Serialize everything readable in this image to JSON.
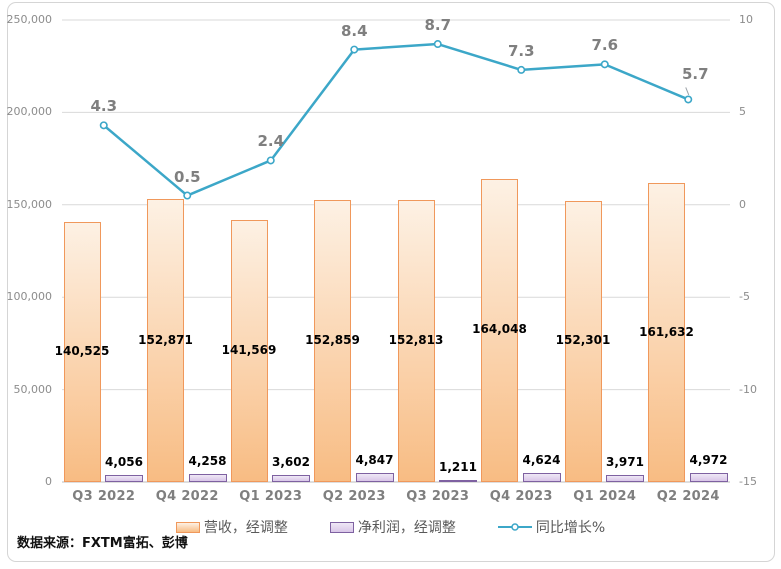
{
  "chart_data": {
    "type": "combo",
    "categories": [
      "Q3 2022",
      "Q4 2022",
      "Q1 2023",
      "Q2 2023",
      "Q3 2023",
      "Q4 2023",
      "Q1 2024",
      "Q2 2024"
    ],
    "series": [
      {
        "name": "营收，经调整",
        "type": "bar",
        "axis": "left",
        "values": [
          140525,
          152871,
          141569,
          152859,
          152813,
          164048,
          152301,
          161632
        ],
        "labels": [
          "140,525",
          "152,871",
          "141,569",
          "152,859",
          "152,813",
          "164,048",
          "152,301",
          "161,632"
        ],
        "fill_top": "#FDF1E4",
        "fill_bottom": "#F8BC83",
        "border": "#F0985B"
      },
      {
        "name": "净利润，经调整",
        "type": "bar",
        "axis": "left",
        "values": [
          4056,
          4258,
          3602,
          4847,
          1211,
          4624,
          3971,
          4972
        ],
        "labels": [
          "4,056",
          "4,258",
          "3,602",
          "4,847",
          "1,211",
          "4,624",
          "3,971",
          "4,972"
        ],
        "fill_top": "#EFE8F6",
        "fill_bottom": "#D9C6E8",
        "border": "#7E61A1"
      },
      {
        "name": "同比增长%",
        "type": "line",
        "axis": "right",
        "values": [
          4.3,
          0.5,
          2.4,
          8.4,
          8.7,
          7.3,
          7.6,
          5.7
        ],
        "labels": [
          "4.3",
          "0.5",
          "2.4",
          "8.4",
          "8.7",
          "7.3",
          "7.6",
          "5.7"
        ],
        "color": "#3CA7C8"
      }
    ],
    "left_axis": {
      "min": 0,
      "max": 250000,
      "tick_labels": [
        "250,000",
        "200,000",
        "150,000",
        "100,000",
        "50,000",
        "0"
      ]
    },
    "right_axis": {
      "min": -15,
      "max": 10,
      "tick_labels": [
        "10",
        "5",
        "0",
        "-5",
        "-10",
        "-15"
      ]
    },
    "grid": true,
    "legend_position": "bottom"
  },
  "source_note": "数据来源：FXTM富拓、彭博",
  "colors": {
    "grid_line": "#D9D9D9",
    "axis_line": "#BDBDBD",
    "tick_text": "#8C8C8C",
    "category_text": "#7F7F7F",
    "line_label_text": "#7F7F7F",
    "bar_label_text": "#000000",
    "legend_text": "#595959",
    "frame_border": "#D5D5D5",
    "leader_line": "#9AA0A6",
    "background": "#FFFFFF"
  }
}
